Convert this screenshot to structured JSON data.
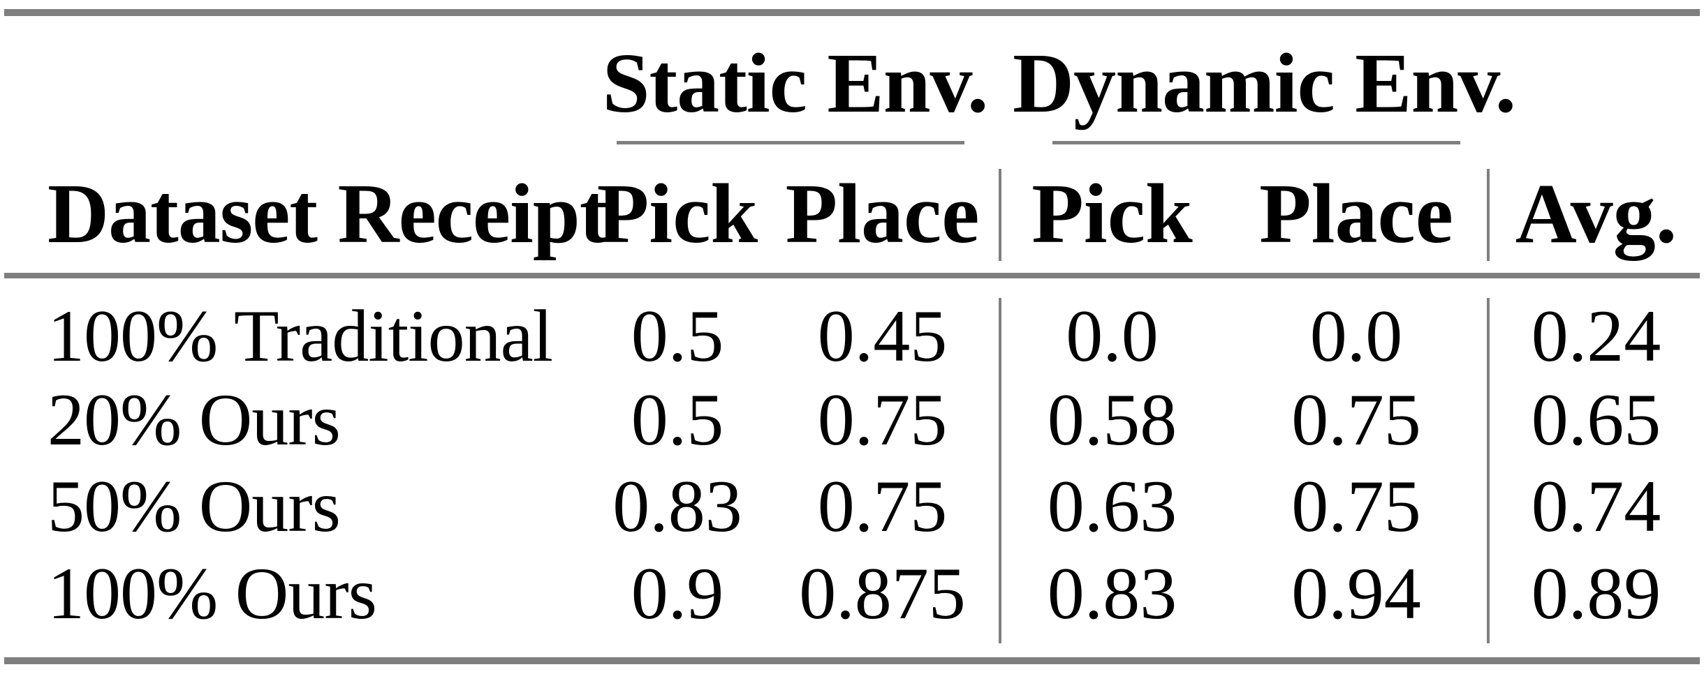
{
  "table": {
    "group_headers": {
      "static": "Static Env.",
      "dynamic": "Dynamic Env."
    },
    "columns": {
      "row_header": "Dataset Receipt",
      "static_pick": "Pick",
      "static_place": "Place",
      "dynamic_pick": "Pick",
      "dynamic_place": "Place",
      "avg": "Avg."
    },
    "rows": [
      {
        "label": "100% Traditional",
        "static_pick": "0.5",
        "static_place": "0.45",
        "dynamic_pick": "0.0",
        "dynamic_place": "0.0",
        "avg": "0.24"
      },
      {
        "label": "20% Ours",
        "static_pick": "0.5",
        "static_place": "0.75",
        "dynamic_pick": "0.58",
        "dynamic_place": "0.75",
        "avg": "0.65"
      },
      {
        "label": "50% Ours",
        "static_pick": "0.83",
        "static_place": "0.75",
        "dynamic_pick": "0.63",
        "dynamic_place": "0.75",
        "avg": "0.74"
      },
      {
        "label": "100% Ours",
        "static_pick": "0.9",
        "static_place": "0.875",
        "dynamic_pick": "0.83",
        "dynamic_place": "0.94",
        "avg": "0.89"
      }
    ],
    "colors": {
      "rule": "#7f7f7f",
      "text": "#000000",
      "background": "#ffffff"
    }
  },
  "chart_data": {
    "type": "table",
    "title": "",
    "column_groups": [
      "Static Env.",
      "Dynamic Env."
    ],
    "columns": [
      "Dataset Receipt",
      "Static Env. Pick",
      "Static Env. Place",
      "Dynamic Env. Pick",
      "Dynamic Env. Place",
      "Avg."
    ],
    "rows": [
      [
        "100% Traditional",
        0.5,
        0.45,
        0.0,
        0.0,
        0.24
      ],
      [
        "20% Ours",
        0.5,
        0.75,
        0.58,
        0.75,
        0.65
      ],
      [
        "50% Ours",
        0.83,
        0.75,
        0.63,
        0.75,
        0.74
      ],
      [
        "100% Ours",
        0.9,
        0.875,
        0.83,
        0.94,
        0.89
      ]
    ]
  }
}
